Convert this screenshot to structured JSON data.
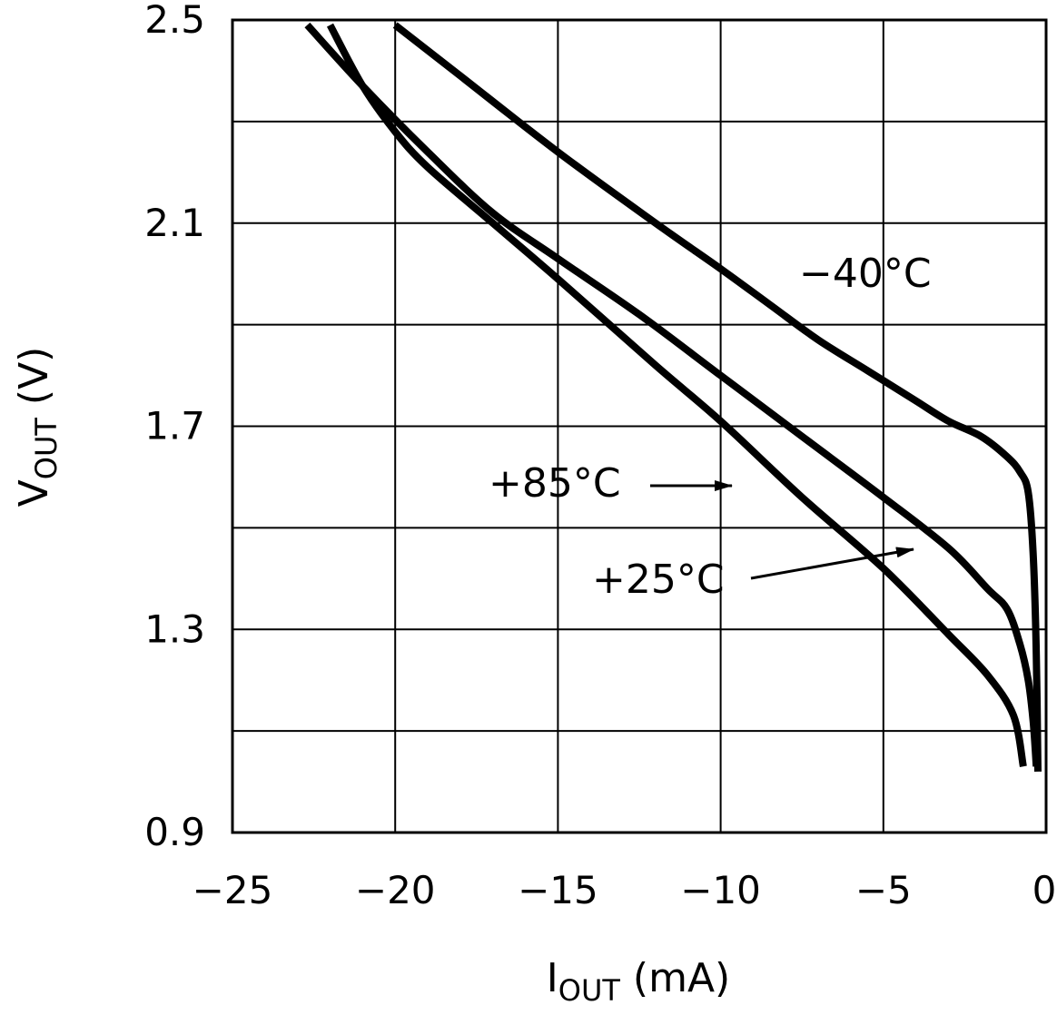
{
  "chart_data": {
    "type": "line",
    "title": "",
    "xlabel": {
      "main": "I",
      "sub": "OUT",
      "unit": "(mA)"
    },
    "ylabel": {
      "main": "V",
      "sub": "OUT",
      "unit": "(V)"
    },
    "xlim": [
      -25,
      0
    ],
    "ylim": [
      0.9,
      2.5
    ],
    "xticks": [
      -25,
      -20,
      -15,
      -10,
      -5,
      0
    ],
    "xtick_labels": [
      "−25",
      "−20",
      "−15",
      "−10",
      "−5",
      "0"
    ],
    "yticks": [
      0.9,
      1.3,
      1.7,
      2.1,
      2.5
    ],
    "ytick_labels": [
      "0.9",
      "1.3",
      "1.7",
      "2.1",
      "2.5"
    ],
    "x_grid": [
      -25,
      -20,
      -15,
      -10,
      -5,
      0
    ],
    "y_grid": [
      0.9,
      1.1,
      1.3,
      1.5,
      1.7,
      1.9,
      2.1,
      2.3,
      2.5
    ],
    "grid": true,
    "series": [
      {
        "name": "-40°C",
        "label": "−40°C",
        "x": [
          -20.0,
          -18.0,
          -15.0,
          -12.0,
          -10.0,
          -8.5,
          -7.0,
          -5.5,
          -4.0,
          -3.0,
          -2.0,
          -1.2,
          -0.8,
          -0.55,
          -0.4,
          -0.3,
          -0.25
        ],
        "y": [
          2.49,
          2.39,
          2.24,
          2.1,
          2.01,
          1.94,
          1.87,
          1.81,
          1.75,
          1.71,
          1.68,
          1.64,
          1.61,
          1.57,
          1.45,
          1.25,
          1.02
        ]
      },
      {
        "name": "+85°C",
        "label": "+85°C",
        "x": [
          -22.0,
          -21.0,
          -20.0,
          -19.0,
          -17.0,
          -15.0,
          -12.0,
          -10.0,
          -7.5,
          -5.0,
          -3.0,
          -1.8,
          -1.0,
          -0.7
        ],
        "y": [
          2.49,
          2.37,
          2.28,
          2.21,
          2.1,
          1.99,
          1.82,
          1.71,
          1.56,
          1.42,
          1.29,
          1.21,
          1.13,
          1.03
        ]
      },
      {
        "name": "+25°C",
        "label": "+25°C",
        "x": [
          -22.7,
          -21.0,
          -19.0,
          -17.0,
          -15.0,
          -12.5,
          -10.0,
          -7.5,
          -5.0,
          -3.0,
          -1.8,
          -1.2,
          -0.8,
          -0.55,
          -0.4,
          -0.3
        ],
        "y": [
          2.49,
          2.37,
          2.24,
          2.12,
          2.03,
          1.92,
          1.8,
          1.68,
          1.56,
          1.46,
          1.38,
          1.34,
          1.27,
          1.2,
          1.12,
          1.03
        ]
      }
    ],
    "annotations": [
      {
        "series": "-40°C",
        "text": "−40°C",
        "arrow": false
      },
      {
        "series": "+85°C",
        "text": "+85°C",
        "arrow": true
      },
      {
        "series": "+25°C",
        "text": "+25°C",
        "arrow": true
      }
    ]
  }
}
